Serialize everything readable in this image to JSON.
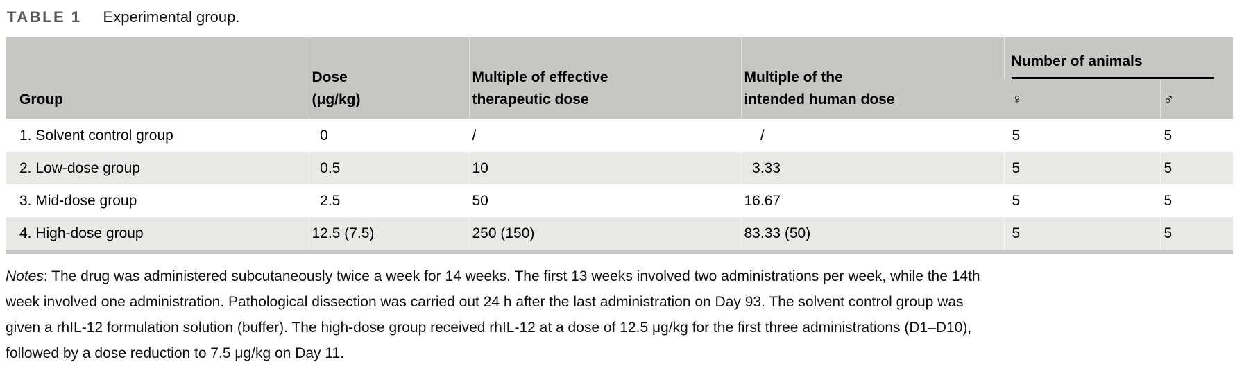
{
  "title": {
    "label": "TABLE 1",
    "caption": "Experimental group."
  },
  "table": {
    "headers": {
      "group": "Group",
      "dose_line1": "Dose",
      "dose_line2": "(μg/kg)",
      "effective_line1": "Multiple of effective",
      "effective_line2": "therapeutic dose",
      "human_line1": "Multiple of the",
      "human_line2": "intended human dose",
      "animals": "Number of animals",
      "female": "♀",
      "male": "♂"
    },
    "rows": [
      {
        "group": "1. Solvent control group",
        "dose": "0",
        "effective": "/",
        "human": "/",
        "female": "5",
        "male": "5"
      },
      {
        "group": "2. Low-dose group",
        "dose": "0.5",
        "effective": "10",
        "human": "3.33",
        "female": "5",
        "male": "5"
      },
      {
        "group": "3. Mid-dose group",
        "dose": "2.5",
        "effective": "50",
        "human": "16.67",
        "female": "5",
        "male": "5"
      },
      {
        "group": "4. High-dose group",
        "dose": "12.5 (7.5)",
        "effective": "250 (150)",
        "human": "83.33 (50)",
        "female": "5",
        "male": "5"
      }
    ]
  },
  "notes": {
    "label": "Notes",
    "separator": ": ",
    "lines": [
      "The drug was administered subcutaneously twice a week for 14 weeks. The first 13 weeks involved two administrations per week, while the 14th",
      "week involved one administration. Pathological dissection was carried out 24 h after the last administration on Day 93. The solvent control group was",
      "given a rhIL-12 formulation solution (buffer). The high-dose group received rhIL-12 at a dose of 12.5 μg/kg for the first three administrations (D1–D10),",
      "followed by a dose reduction to 7.5 μg/kg on Day 11."
    ]
  },
  "colors": {
    "header_bg": "#c6c7c5",
    "row_bg": "#ffffff",
    "row_alt_bg": "#e8e8e6",
    "bottom_strip": "#c6c7c5",
    "title_label": "#595959",
    "animals_rule": "#000000",
    "text": "#0f0f0f"
  }
}
